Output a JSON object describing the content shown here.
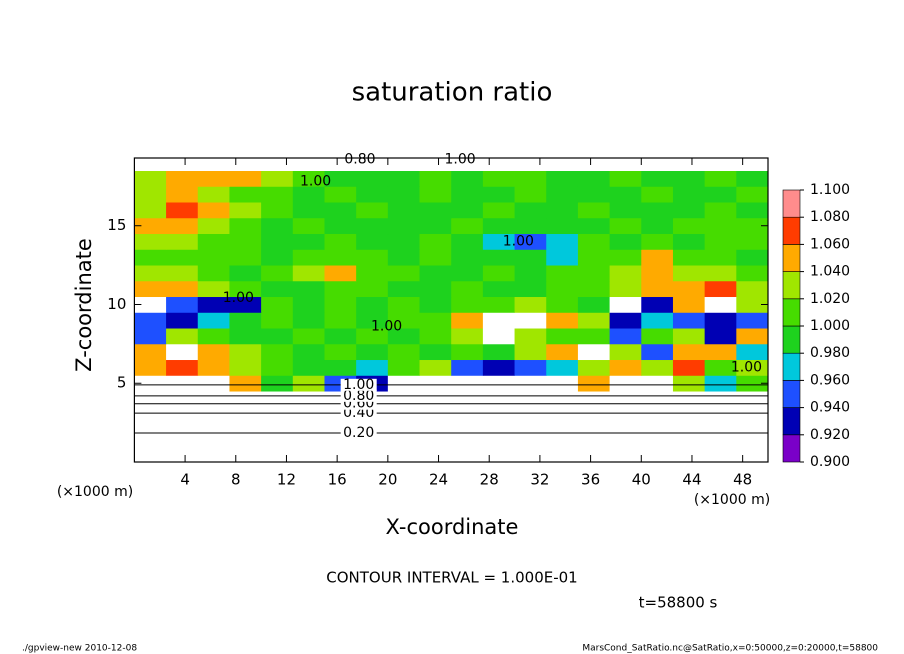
{
  "chart_data": {
    "type": "heatmap",
    "title": "saturation ratio",
    "xlabel": "X-coordinate",
    "ylabel": "Z-coordinate",
    "x_unit_left": "(×1000 m)",
    "x_unit_right": "(×1000 m)",
    "xlim": [
      0,
      50
    ],
    "ylim": [
      0,
      19.3
    ],
    "xticks": [
      4,
      8,
      12,
      16,
      20,
      24,
      28,
      32,
      36,
      40,
      44,
      48
    ],
    "yticks": [
      5,
      10,
      15
    ],
    "x_edges": [
      0,
      2.5,
      5,
      7.5,
      10,
      12.5,
      15,
      17.5,
      20,
      22.5,
      25,
      27.5,
      30,
      32.5,
      35,
      37.5,
      40,
      42.5,
      45,
      47.5,
      50
    ],
    "z_edges": [
      0,
      4.5,
      5.5,
      6.5,
      7.5,
      8.5,
      9.5,
      10.5,
      11.5,
      12.5,
      13.5,
      14.5,
      15.5,
      16.5,
      17.5,
      18.5,
      19.3
    ],
    "values": [
      [
        0.5,
        0.5,
        0.5,
        0.5,
        0.5,
        0.5,
        0.5,
        0.5,
        0.5,
        0.5,
        0.5,
        0.5,
        0.5,
        0.5,
        0.5,
        0.5,
        0.5,
        0.5,
        0.5,
        0.5
      ],
      [
        1.12,
        1.12,
        1.11,
        1.05,
        0.99,
        1.03,
        0.95,
        0.93,
        1.12,
        1.12,
        1.12,
        1.12,
        1.12,
        1.12,
        1.05,
        1.12,
        1.12,
        1.04,
        0.98,
        1.02
      ],
      [
        1.06,
        1.07,
        1.05,
        1.03,
        1.01,
        1.0,
        0.99,
        0.97,
        1.02,
        1.04,
        0.96,
        0.94,
        0.95,
        0.97,
        1.03,
        1.06,
        1.04,
        1.07,
        1.01,
        1.03
      ],
      [
        1.05,
        1.12,
        1.06,
        1.04,
        1.01,
        1.0,
        1.02,
        1.0,
        1.01,
        1.0,
        1.01,
        0.99,
        1.03,
        1.05,
        1.12,
        1.04,
        0.95,
        1.05,
        1.06,
        0.97
      ],
      [
        0.96,
        1.03,
        1.01,
        1.0,
        0.99,
        1.01,
        1.0,
        1.02,
        1.0,
        1.01,
        1.03,
        1.12,
        1.04,
        1.01,
        1.02,
        0.96,
        1.01,
        1.04,
        0.94,
        1.05
      ],
      [
        0.95,
        0.93,
        0.97,
        0.99,
        1.01,
        1.0,
        1.01,
        1.0,
        1.02,
        1.01,
        1.05,
        1.12,
        1.12,
        1.06,
        1.03,
        0.94,
        0.97,
        0.96,
        0.93,
        0.95
      ],
      [
        1.12,
        0.95,
        0.93,
        0.94,
        1.01,
        1.0,
        1.01,
        1.0,
        1.01,
        1.0,
        1.02,
        1.01,
        1.03,
        1.01,
        0.99,
        1.12,
        0.93,
        1.05,
        1.12,
        1.04
      ],
      [
        1.05,
        1.06,
        1.04,
        1.01,
        1.0,
        1.0,
        1.02,
        1.01,
        1.0,
        1.0,
        1.01,
        1.0,
        1.0,
        1.01,
        1.02,
        1.04,
        1.06,
        1.05,
        1.07,
        1.03
      ],
      [
        1.03,
        1.04,
        1.01,
        1.0,
        1.01,
        1.03,
        1.05,
        1.02,
        1.01,
        1.0,
        1.0,
        1.01,
        1.0,
        1.02,
        1.01,
        1.03,
        1.05,
        1.04,
        1.03,
        1.01
      ],
      [
        1.02,
        1.01,
        1.02,
        1.01,
        1.0,
        1.01,
        1.02,
        1.01,
        1.0,
        1.01,
        1.0,
        1.0,
        0.99,
        0.98,
        1.01,
        1.02,
        1.06,
        1.01,
        1.02,
        1.0
      ],
      [
        1.04,
        1.03,
        1.02,
        1.01,
        1.0,
        1.0,
        1.01,
        1.0,
        1.0,
        1.01,
        1.0,
        0.97,
        0.96,
        0.98,
        1.01,
        1.0,
        1.01,
        1.0,
        1.01,
        1.01
      ],
      [
        1.05,
        1.06,
        1.03,
        1.02,
        1.0,
        1.01,
        1.0,
        1.0,
        1.0,
        1.0,
        1.01,
        1.0,
        0.99,
        1.0,
        1.0,
        1.01,
        1.0,
        1.01,
        1.02,
        1.01
      ],
      [
        1.04,
        1.07,
        1.05,
        1.03,
        1.01,
        1.0,
        1.0,
        1.01,
        1.0,
        1.0,
        1.0,
        1.01,
        1.0,
        1.0,
        1.01,
        1.0,
        1.0,
        1.0,
        1.01,
        1.0
      ],
      [
        1.03,
        1.05,
        1.04,
        1.02,
        1.01,
        1.0,
        1.01,
        1.0,
        1.0,
        1.01,
        1.0,
        1.0,
        1.01,
        1.0,
        1.0,
        1.0,
        1.01,
        1.0,
        1.0,
        1.01
      ],
      [
        1.04,
        1.05,
        1.06,
        1.05,
        1.03,
        1.01,
        1.0,
        1.0,
        1.0,
        1.01,
        1.0,
        1.01,
        1.02,
        1.0,
        1.0,
        1.01,
        1.0,
        1.0,
        1.01,
        1.0
      ],
      [
        0.88,
        0.88,
        0.88,
        0.88,
        0.88,
        0.88,
        0.88,
        0.88,
        0.88,
        0.88,
        0.88,
        0.88,
        0.88,
        0.88,
        0.88,
        0.88,
        0.88,
        0.88,
        0.88,
        0.88
      ]
    ],
    "colorbar_ticks": [
      {
        "value": 0.9,
        "label": "0.900"
      },
      {
        "value": 0.92,
        "label": "0.920"
      },
      {
        "value": 0.94,
        "label": "0.940"
      },
      {
        "value": 0.96,
        "label": "0.960"
      },
      {
        "value": 0.98,
        "label": "0.980"
      },
      {
        "value": 1.0,
        "label": "1.000"
      },
      {
        "value": 1.02,
        "label": "1.020"
      },
      {
        "value": 1.04,
        "label": "1.040"
      },
      {
        "value": 1.06,
        "label": "1.060"
      },
      {
        "value": 1.08,
        "label": "1.080"
      },
      {
        "value": 1.1,
        "label": "1.100"
      }
    ],
    "colors": [
      "#7a00c8",
      "#0000b4",
      "#1e50ff",
      "#00c8dc",
      "#1ed21e",
      "#46dc00",
      "#a0e600",
      "#ffaa00",
      "#ff3c00",
      "#ff8c8c"
    ],
    "out_of_range_color": "#ffffff",
    "contour_lines": [
      {
        "value": 0.2,
        "label": "0.20",
        "z": 1.84
      },
      {
        "value": 0.4,
        "label": "0.40",
        "z": 3.1
      },
      {
        "value": 0.6,
        "label": "0.60",
        "z": 3.7
      },
      {
        "value": 0.8,
        "label": "0.80",
        "z": 4.2
      },
      {
        "value": 1.0,
        "label": "1.00",
        "z": 4.9
      }
    ],
    "contour_label_x": 17.7,
    "contour_labels": [
      {
        "text": "0.80",
        "x": 17.8,
        "z": 19.2
      },
      {
        "text": "1.00",
        "x": 25.7,
        "z": 19.2
      },
      {
        "text": "1.00",
        "x": 14.3,
        "z": 17.8
      },
      {
        "text": "1.00",
        "x": 30.3,
        "z": 14.0
      },
      {
        "text": "1.00",
        "x": 19.9,
        "z": 8.6
      },
      {
        "text": "1.00",
        "x": 8.2,
        "z": 10.4
      },
      {
        "text": "1.00",
        "x": 48.3,
        "z": 6.0
      }
    ],
    "contour_interval": "CONTOUR INTERVAL = 1.000E-01",
    "time_label": "t=58800 s",
    "footer_left": "./gpview-new  2010-12-08",
    "footer_right": "MarsCond_SatRatio.nc@SatRatio,x=0:50000,z=0:20000,t=58800"
  }
}
